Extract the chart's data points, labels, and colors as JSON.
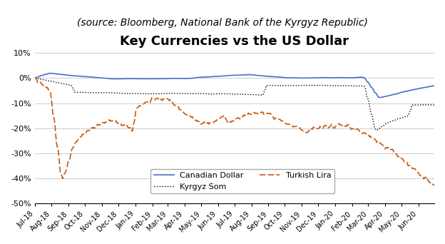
{
  "title": "Key Currencies vs the US Dollar",
  "subtitle": "(source: Bloomberg, National Bank of the Kyrgyz Republic)",
  "title_fontsize": 13,
  "subtitle_fontsize": 10,
  "ylim": [
    -50,
    12
  ],
  "yticks": [
    -50,
    -40,
    -30,
    -20,
    -10,
    0,
    10
  ],
  "ytick_labels": [
    "-50%",
    "-40%",
    "-30%",
    "-20%",
    "-10%",
    "0%",
    "10%"
  ],
  "background_color": "#ffffff",
  "grid_color": "#cccccc",
  "canadian_dollar_color": "#4472C4",
  "kyrgyz_som_color": "#000000",
  "turkish_lira_color": "#C55A11",
  "x_labels": [
    "Jul-18",
    "Aug-18",
    "Sep-18",
    "Oct-18",
    "Nov-18",
    "Dec-18",
    "Jan-19",
    "Feb-19",
    "Mar-19",
    "Apr-19",
    "May-19",
    "Jun-19",
    "Jul-19",
    "Aug-19",
    "Sep-19",
    "Oct-19",
    "Nov-19",
    "Dec-19",
    "Jan-20",
    "Feb-20",
    "Mar-20",
    "Apr-20",
    "May-20",
    "Jun-20"
  ]
}
